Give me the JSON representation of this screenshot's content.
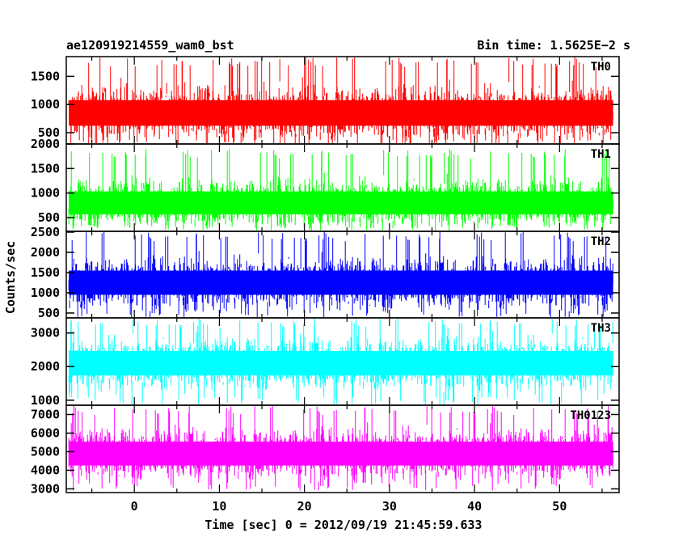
{
  "header": {
    "title": "ae120919214559_wam0_bst",
    "bin_time": "Bin time: 1.5625E−2 s"
  },
  "chart_data": {
    "type": "line",
    "title": "ae120919214559_wam0_bst",
    "subtitle": "Bin time: 1.5625E−2 s",
    "xlabel": "Time [sec] 0 = 2012/09/19 21:45:59.633",
    "ylabel": "Counts/sec",
    "xlim": [
      -8,
      57
    ],
    "x_ticks": [
      0,
      10,
      20,
      30,
      40,
      50
    ],
    "x_data_range": [
      -7.7,
      56.3
    ],
    "bin_time_s": 0.015625,
    "grid": false,
    "panels": [
      {
        "name": "TH0",
        "color": "#ff0000",
        "ylim": [
          300,
          1850
        ],
        "y_ticks": [
          500,
          1000,
          1500
        ],
        "baseline": 850,
        "min": 230,
        "max": 1850
      },
      {
        "name": "TH1",
        "color": "#00ff00",
        "ylim": [
          220,
          2000
        ],
        "y_ticks": [
          500,
          1000,
          1500,
          2000
        ],
        "baseline": 800,
        "min": 230,
        "max": 1900
      },
      {
        "name": "TH2",
        "color": "#0000ff",
        "ylim": [
          380,
          2520
        ],
        "y_ticks": [
          500,
          1000,
          1500,
          2000,
          2500
        ],
        "baseline": 1250,
        "min": 380,
        "max": 2520
      },
      {
        "name": "TH3",
        "color": "#00ffff",
        "ylim": [
          850,
          3450
        ],
        "y_ticks": [
          1000,
          2000,
          3000
        ],
        "baseline": 2100,
        "min": 850,
        "max": 3450
      },
      {
        "name": "TH0123",
        "color": "#ff00ff",
        "ylim": [
          2800,
          7500
        ],
        "y_ticks": [
          3000,
          4000,
          5000,
          6000,
          7000
        ],
        "baseline": 4900,
        "min": 2900,
        "max": 7500
      }
    ]
  }
}
